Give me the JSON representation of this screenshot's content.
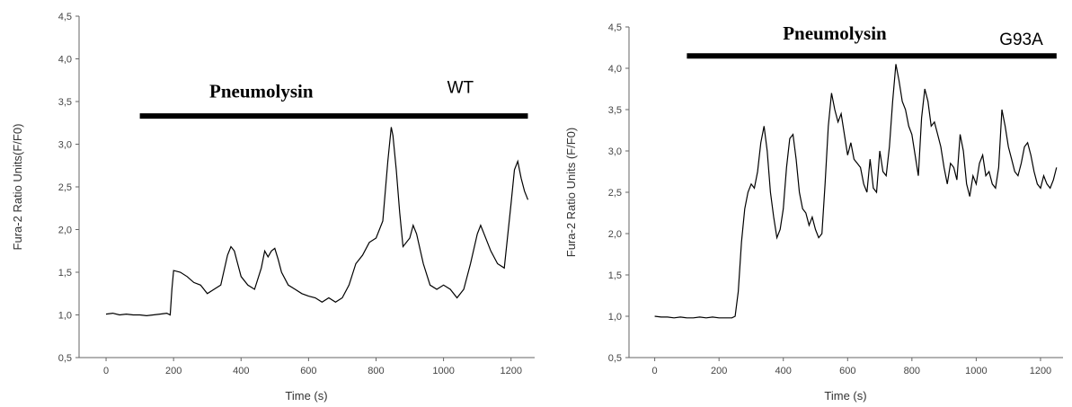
{
  "figure": {
    "background": "#ffffff",
    "line_color": "#000000",
    "axis_color": "#666666"
  },
  "chart_data": [
    {
      "type": "line",
      "title": "",
      "xlabel": "Time (s)",
      "ylabel": "Fura-2 Ratio Units(F/F0)",
      "xlim": [
        -80,
        1270
      ],
      "ylim": [
        0.5,
        4.5
      ],
      "xticks": [
        0,
        200,
        400,
        600,
        800,
        1000,
        1200
      ],
      "xtick_labels": [
        "0",
        "200",
        "400",
        "600",
        "800",
        "1000",
        "1200"
      ],
      "yticks": [
        0.5,
        1.0,
        1.5,
        2.0,
        2.5,
        3.0,
        3.5,
        4.0,
        4.5
      ],
      "ytick_labels": [
        "0,5",
        "1,0",
        "1,5",
        "2,0",
        "2,5",
        "3,0",
        "3,5",
        "4,0",
        "4,5"
      ],
      "grid": false,
      "annotations": [
        {
          "text": "Pneumolysin",
          "kind": "label",
          "x": 460,
          "y": 3.55
        },
        {
          "text": "WT",
          "kind": "label",
          "x": 1050,
          "y": 3.6
        }
      ],
      "bar": {
        "label": "Pneumolysin",
        "x_start": 100,
        "x_end": 1250,
        "y": 3.33
      },
      "series": [
        {
          "x": [
            0,
            20,
            40,
            60,
            80,
            100,
            120,
            140,
            160,
            180,
            190,
            195,
            200,
            220,
            240,
            260,
            280,
            300,
            320,
            340,
            360,
            370,
            380,
            390,
            400,
            420,
            440,
            460,
            470,
            480,
            490,
            500,
            510,
            520,
            540,
            560,
            580,
            600,
            620,
            640,
            660,
            680,
            700,
            720,
            740,
            760,
            780,
            800,
            820,
            835,
            845,
            850,
            860,
            870,
            880,
            900,
            910,
            920,
            940,
            960,
            980,
            1000,
            1020,
            1040,
            1060,
            1080,
            1100,
            1110,
            1120,
            1140,
            1160,
            1180,
            1200,
            1210,
            1220,
            1230,
            1240,
            1250
          ],
          "y": [
            1.01,
            1.02,
            1.0,
            1.01,
            1.0,
            1.0,
            0.99,
            1.0,
            1.01,
            1.02,
            1.0,
            1.3,
            1.52,
            1.5,
            1.45,
            1.38,
            1.35,
            1.25,
            1.3,
            1.35,
            1.7,
            1.8,
            1.75,
            1.6,
            1.45,
            1.35,
            1.3,
            1.55,
            1.75,
            1.68,
            1.75,
            1.78,
            1.65,
            1.5,
            1.35,
            1.3,
            1.25,
            1.22,
            1.2,
            1.15,
            1.2,
            1.15,
            1.2,
            1.35,
            1.6,
            1.7,
            1.85,
            1.9,
            2.1,
            2.8,
            3.2,
            3.1,
            2.7,
            2.2,
            1.8,
            1.9,
            2.05,
            1.95,
            1.6,
            1.35,
            1.3,
            1.35,
            1.3,
            1.2,
            1.3,
            1.6,
            1.95,
            2.05,
            1.95,
            1.75,
            1.6,
            1.55,
            2.3,
            2.7,
            2.8,
            2.6,
            2.45,
            2.35
          ]
        }
      ]
    },
    {
      "type": "line",
      "title": "",
      "xlabel": "Time (s)",
      "ylabel": "Fura-2 Ratio Units (F/F0)",
      "xlim": [
        -80,
        1270
      ],
      "ylim": [
        0.5,
        4.5
      ],
      "xticks": [
        0,
        200,
        400,
        600,
        800,
        1000,
        1200
      ],
      "xtick_labels": [
        "0",
        "200",
        "400",
        "600",
        "800",
        "1000",
        "1200"
      ],
      "yticks": [
        0.5,
        1.0,
        1.5,
        2.0,
        2.5,
        3.0,
        3.5,
        4.0,
        4.5
      ],
      "ytick_labels": [
        "0,5",
        "1,0",
        "1,5",
        "2,0",
        "2,5",
        "3,0",
        "3,5",
        "4,0",
        "4,5"
      ],
      "grid": false,
      "annotations": [
        {
          "text": "Pneumolysin",
          "kind": "label",
          "x": 560,
          "y": 4.35
        },
        {
          "text": "G93A",
          "kind": "label",
          "x": 1140,
          "y": 4.28
        }
      ],
      "bar": {
        "label": "Pneumolysin",
        "x_start": 100,
        "x_end": 1250,
        "y": 4.15
      },
      "series": [
        {
          "x": [
            0,
            20,
            40,
            60,
            80,
            100,
            120,
            140,
            160,
            180,
            200,
            220,
            240,
            250,
            260,
            270,
            280,
            290,
            300,
            310,
            320,
            330,
            340,
            350,
            360,
            370,
            380,
            390,
            400,
            410,
            420,
            430,
            440,
            450,
            460,
            470,
            480,
            490,
            500,
            510,
            520,
            530,
            540,
            550,
            560,
            570,
            580,
            590,
            600,
            610,
            620,
            630,
            640,
            650,
            660,
            670,
            680,
            690,
            700,
            710,
            720,
            730,
            740,
            750,
            760,
            770,
            780,
            790,
            800,
            810,
            820,
            830,
            840,
            850,
            860,
            870,
            880,
            890,
            900,
            910,
            920,
            930,
            940,
            950,
            960,
            970,
            980,
            990,
            1000,
            1010,
            1020,
            1030,
            1040,
            1050,
            1060,
            1070,
            1080,
            1090,
            1100,
            1110,
            1120,
            1130,
            1140,
            1150,
            1160,
            1170,
            1180,
            1190,
            1200,
            1210,
            1220,
            1230,
            1240,
            1250
          ],
          "y": [
            1.0,
            0.99,
            0.99,
            0.98,
            0.99,
            0.98,
            0.98,
            0.99,
            0.98,
            0.99,
            0.98,
            0.98,
            0.98,
            1.0,
            1.3,
            1.9,
            2.3,
            2.5,
            2.6,
            2.55,
            2.75,
            3.1,
            3.3,
            3.0,
            2.5,
            2.2,
            1.95,
            2.05,
            2.3,
            2.8,
            3.15,
            3.2,
            2.9,
            2.5,
            2.3,
            2.25,
            2.1,
            2.2,
            2.05,
            1.95,
            2.0,
            2.6,
            3.3,
            3.7,
            3.5,
            3.35,
            3.45,
            3.2,
            2.95,
            3.1,
            2.9,
            2.85,
            2.8,
            2.6,
            2.5,
            2.9,
            2.55,
            2.5,
            3.0,
            2.75,
            2.7,
            3.05,
            3.6,
            4.05,
            3.85,
            3.6,
            3.5,
            3.3,
            3.2,
            2.95,
            2.7,
            3.4,
            3.75,
            3.6,
            3.3,
            3.35,
            3.2,
            3.05,
            2.8,
            2.6,
            2.85,
            2.8,
            2.65,
            3.2,
            3.0,
            2.6,
            2.45,
            2.7,
            2.6,
            2.85,
            2.95,
            2.7,
            2.75,
            2.6,
            2.55,
            2.8,
            3.5,
            3.3,
            3.05,
            2.9,
            2.75,
            2.7,
            2.85,
            3.05,
            3.1,
            2.95,
            2.75,
            2.6,
            2.55,
            2.7,
            2.6,
            2.55,
            2.65,
            2.8
          ]
        }
      ]
    }
  ]
}
